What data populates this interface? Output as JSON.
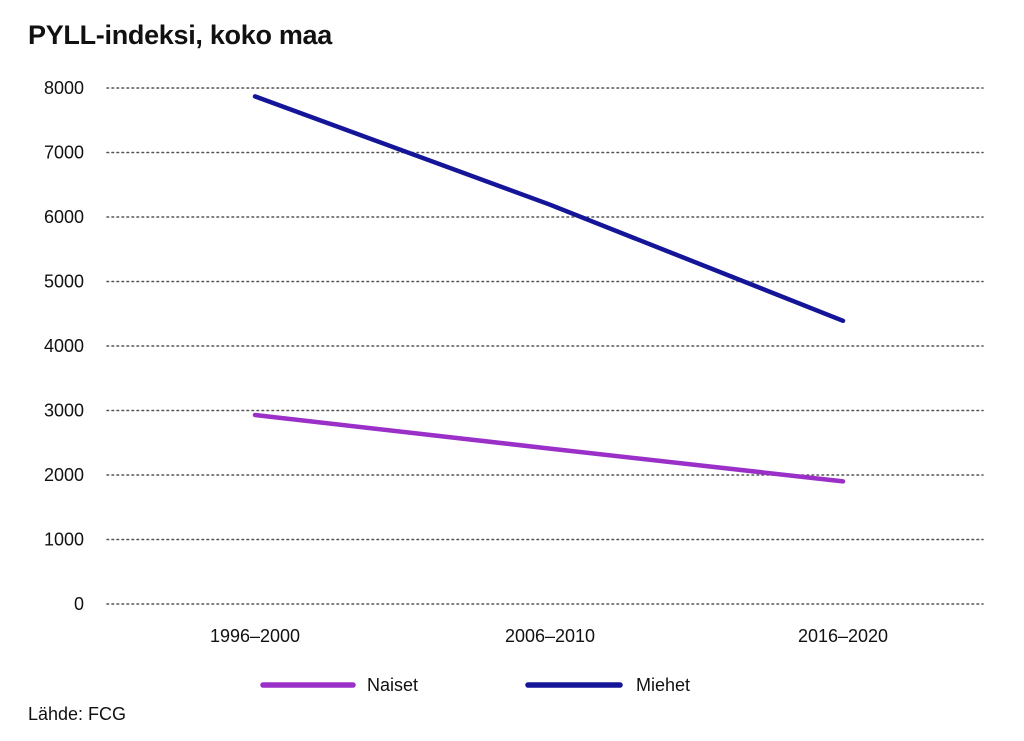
{
  "title": "PYLL-indeksi, koko maa",
  "source": "Lähde: FCG",
  "colors": {
    "naiset": "#9b30c8",
    "miehet": "#151599",
    "grid": "#555555",
    "text": "#111111"
  },
  "chart_data": {
    "type": "line",
    "title": "PYLL-indeksi, koko maa",
    "xlabel": "",
    "ylabel": "",
    "categories": [
      "1996–2000",
      "2006–2010",
      "2016–2020"
    ],
    "ylim": [
      0,
      8000
    ],
    "yticks": [
      0,
      1000,
      2000,
      3000,
      4000,
      5000,
      6000,
      7000,
      8000
    ],
    "grid": true,
    "legend_position": "bottom",
    "series": [
      {
        "name": "Naiset",
        "color": "#9b30c8",
        "values": [
          2930,
          2410,
          1900
        ]
      },
      {
        "name": "Miehet",
        "color": "#151599",
        "values": [
          7870,
          6190,
          4390
        ]
      }
    ]
  }
}
